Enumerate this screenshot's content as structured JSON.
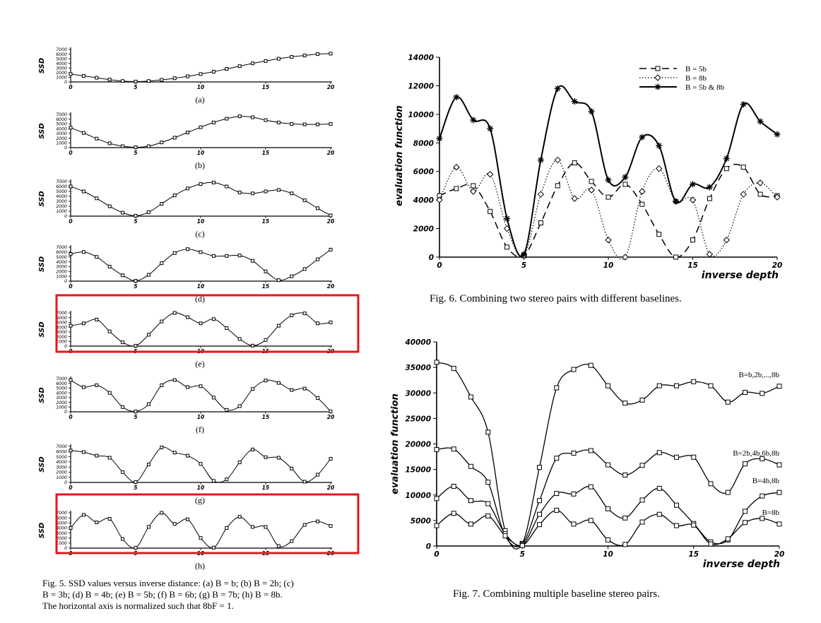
{
  "fig5": {
    "ylabel": "SSD",
    "x_ticks": [
      "0",
      "5",
      "10",
      "15",
      "20"
    ],
    "y_ticks": [
      "7000",
      "6000",
      "5000",
      "4000",
      "3000",
      "2000",
      "1000",
      "0"
    ],
    "caption_lines": [
      "Fig. 5.   SSD values versus inverse distance: (a) B = b; (b) B = 2b; (c)",
      "B = 3b; (d) B = 4b; (e) B = 5b; (f) B = 6b; (g) B = 7b; (h) B = 8b.",
      "The horizontal axis is normalized such that 8bF = 1."
    ]
  },
  "fig6": {
    "caption": "Fig. 6.   Combining two stereo pairs with different baselines."
  },
  "fig7": {
    "caption": "Fig. 7.   Combining multiple baseline stereo pairs."
  },
  "highlight_color": "#e8151b",
  "chart_data": [
    {
      "type": "line",
      "panel_label": "(a)",
      "ylabel": "SSD",
      "xlim": [
        0,
        20
      ],
      "ylim": [
        0,
        7000
      ],
      "x": [
        0,
        1,
        2,
        3,
        4,
        5,
        6,
        7,
        8,
        9,
        10,
        11,
        12,
        13,
        14,
        15,
        16,
        17,
        18,
        19,
        20
      ],
      "series": [
        {
          "values": [
            1700,
            1300,
            900,
            500,
            200,
            80,
            200,
            450,
            800,
            1200,
            1700,
            2200,
            2800,
            3400,
            4000,
            4500,
            5000,
            5400,
            5700,
            6000,
            6100
          ]
        }
      ]
    },
    {
      "type": "line",
      "panel_label": "(b)",
      "ylabel": "SSD",
      "xlim": [
        0,
        20
      ],
      "ylim": [
        0,
        7000
      ],
      "x": [
        0,
        1,
        2,
        3,
        4,
        5,
        6,
        7,
        8,
        9,
        10,
        11,
        12,
        13,
        14,
        15,
        16,
        17,
        18,
        19,
        20
      ],
      "series": [
        {
          "values": [
            4200,
            3100,
            1900,
            900,
            300,
            80,
            300,
            1100,
            2100,
            3200,
            4300,
            5300,
            6100,
            6600,
            6400,
            5800,
            5300,
            5000,
            4900,
            4900,
            5000
          ]
        }
      ]
    },
    {
      "type": "line",
      "panel_label": "(c)",
      "ylabel": "SSD",
      "xlim": [
        0,
        20
      ],
      "ylim": [
        0,
        7000
      ],
      "x": [
        0,
        1,
        2,
        3,
        4,
        5,
        6,
        7,
        8,
        9,
        10,
        11,
        12,
        13,
        14,
        15,
        16,
        17,
        18,
        19,
        20
      ],
      "series": [
        {
          "values": [
            6000,
            5000,
            3600,
            2000,
            700,
            80,
            800,
            2500,
            4200,
            5600,
            6500,
            6800,
            6000,
            4800,
            4600,
            5000,
            5300,
            4600,
            3200,
            1600,
            150
          ]
        }
      ]
    },
    {
      "type": "line",
      "panel_label": "(d)",
      "ylabel": "SSD",
      "xlim": [
        0,
        20
      ],
      "ylim": [
        0,
        7000
      ],
      "x": [
        0,
        1,
        2,
        3,
        4,
        5,
        6,
        7,
        8,
        9,
        10,
        11,
        12,
        13,
        14,
        15,
        16,
        17,
        18,
        19,
        20
      ],
      "series": [
        {
          "values": [
            5600,
            6000,
            5000,
            3000,
            1200,
            80,
            1300,
            3700,
            5800,
            6600,
            6000,
            5200,
            5200,
            5300,
            4200,
            2000,
            200,
            1000,
            2500,
            4500,
            6500
          ]
        }
      ]
    },
    {
      "type": "line",
      "panel_label": "(e)",
      "ylabel": "SSD",
      "xlim": [
        0,
        20
      ],
      "ylim": [
        0,
        7000
      ],
      "x": [
        0,
        1,
        2,
        3,
        4,
        5,
        6,
        7,
        8,
        9,
        10,
        11,
        12,
        13,
        14,
        15,
        16,
        17,
        18,
        19,
        20
      ],
      "series": [
        {
          "values": [
            4300,
            4800,
            5600,
            3100,
            800,
            80,
            2400,
            5200,
            7000,
            6100,
            4800,
            5700,
            3800,
            1500,
            100,
            1300,
            4300,
            6500,
            6900,
            4800,
            5000
          ]
        }
      ]
    },
    {
      "type": "line",
      "panel_label": "(f)",
      "ylabel": "SSD",
      "xlim": [
        0,
        20
      ],
      "ylim": [
        0,
        7000
      ],
      "x": [
        0,
        1,
        2,
        3,
        4,
        5,
        6,
        7,
        8,
        9,
        10,
        11,
        12,
        13,
        14,
        15,
        16,
        17,
        18,
        19,
        20
      ],
      "series": [
        {
          "values": [
            6700,
            5200,
            5600,
            4000,
            1000,
            80,
            1600,
            5600,
            6700,
            5200,
            5400,
            3000,
            400,
            1200,
            4800,
            6600,
            6100,
            4600,
            4900,
            2900,
            100
          ]
        }
      ]
    },
    {
      "type": "line",
      "panel_label": "(g)",
      "ylabel": "SSD",
      "xlim": [
        0,
        20
      ],
      "ylim": [
        0,
        7000
      ],
      "x": [
        0,
        1,
        2,
        3,
        4,
        5,
        6,
        7,
        8,
        9,
        10,
        11,
        12,
        13,
        14,
        15,
        16,
        17,
        18,
        19,
        20
      ],
      "series": [
        {
          "values": [
            6200,
            5900,
            5200,
            4800,
            2000,
            80,
            3500,
            6800,
            5800,
            5200,
            3600,
            300,
            600,
            3900,
            6400,
            4900,
            4800,
            2700,
            150,
            1500,
            4600
          ]
        }
      ]
    },
    {
      "type": "line",
      "panel_label": "(h)",
      "ylabel": "SSD",
      "xlim": [
        0,
        20
      ],
      "ylim": [
        0,
        7000
      ],
      "x": [
        0,
        1,
        2,
        3,
        4,
        5,
        6,
        7,
        8,
        9,
        10,
        11,
        12,
        13,
        14,
        15,
        16,
        17,
        18,
        19,
        20
      ],
      "series": [
        {
          "values": [
            4000,
            6600,
            5100,
            5800,
            1800,
            80,
            4200,
            7000,
            4800,
            5700,
            2000,
            100,
            4000,
            6200,
            4200,
            4200,
            400,
            1400,
            4600,
            5300,
            4400
          ]
        }
      ]
    },
    {
      "type": "line",
      "ylabel": "evaluation function",
      "xlabel": "inverse depth",
      "xlim": [
        0,
        20
      ],
      "ylim": [
        0,
        14000
      ],
      "x_ticks": [
        "0",
        "5",
        "10",
        "15",
        "20"
      ],
      "y_ticks": [
        "0",
        "2000",
        "4000",
        "6000",
        "8000",
        "10000",
        "12000",
        "14000"
      ],
      "legend": "top-right",
      "x": [
        0,
        1,
        2,
        3,
        4,
        5,
        6,
        7,
        8,
        9,
        10,
        11,
        12,
        13,
        14,
        15,
        16,
        17,
        18,
        19,
        20
      ],
      "series": [
        {
          "name": "B = 5b",
          "style": "dashed",
          "marker": "square",
          "values": [
            4300,
            4800,
            5000,
            3200,
            700,
            100,
            2400,
            5000,
            6600,
            5300,
            4200,
            5100,
            3700,
            1600,
            0,
            1200,
            4100,
            6200,
            6300,
            4400,
            4300
          ]
        },
        {
          "name": "B = 8b",
          "style": "dotted",
          "marker": "diamond",
          "values": [
            4000,
            6300,
            4600,
            5800,
            2000,
            100,
            4400,
            6800,
            4100,
            4700,
            1200,
            0,
            4600,
            6200,
            3900,
            4000,
            200,
            1200,
            4400,
            5200,
            4200
          ]
        },
        {
          "name": "B = 5b & 8b",
          "style": "solid",
          "marker": "star",
          "values": [
            8300,
            11200,
            9600,
            9000,
            2700,
            200,
            6800,
            11800,
            10900,
            10200,
            5400,
            5600,
            8400,
            7800,
            3900,
            5100,
            4900,
            6900,
            10700,
            9500,
            8600
          ]
        }
      ]
    },
    {
      "type": "line",
      "ylabel": "evaluation function",
      "xlabel": "inverse depth",
      "xlim": [
        0,
        20
      ],
      "ylim": [
        0,
        40000
      ],
      "x_ticks": [
        "0",
        "5",
        "10",
        "15",
        "20"
      ],
      "y_ticks": [
        "0",
        "5000",
        "10000",
        "15000",
        "20000",
        "25000",
        "30000",
        "35000",
        "40000"
      ],
      "x": [
        0,
        1,
        2,
        3,
        4,
        5,
        6,
        7,
        8,
        9,
        10,
        11,
        12,
        13,
        14,
        15,
        16,
        17,
        18,
        19,
        20
      ],
      "series": [
        {
          "name": "B=b,2b,...,8b",
          "values": [
            36000,
            34800,
            29200,
            22300,
            3000,
            500,
            15400,
            31000,
            34600,
            35400,
            31400,
            28000,
            28600,
            31400,
            31400,
            32200,
            31400,
            28200,
            30100,
            29900,
            31300
          ]
        },
        {
          "name": "B=2b,4b,6b,8b",
          "values": [
            18900,
            19000,
            15600,
            12500,
            2000,
            400,
            8900,
            17200,
            18200,
            18700,
            15900,
            13900,
            15800,
            18300,
            17400,
            17400,
            12200,
            10500,
            16100,
            17100,
            15900
          ]
        },
        {
          "name": "B=4b,8b",
          "values": [
            9300,
            11700,
            8900,
            8300,
            2400,
            200,
            6200,
            10300,
            10200,
            11600,
            7300,
            5500,
            9000,
            11300,
            8000,
            4400,
            800,
            1200,
            6800,
            9800,
            10500
          ]
        },
        {
          "name": "B=8b",
          "values": [
            4000,
            6400,
            4300,
            5900,
            2000,
            100,
            4200,
            7000,
            4300,
            5000,
            1200,
            300,
            4700,
            6200,
            4000,
            4100,
            400,
            1400,
            4600,
            5400,
            4300
          ]
        }
      ]
    }
  ]
}
